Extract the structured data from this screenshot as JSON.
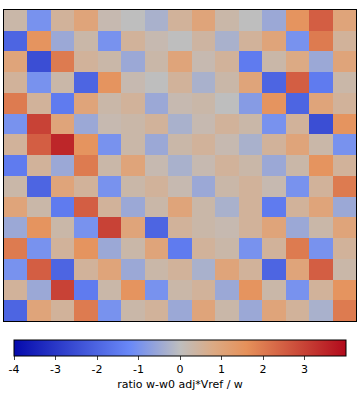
{
  "chart_data": {
    "type": "heatmap",
    "tick_labels": false,
    "z": [
      [
        0.3,
        -1,
        0.5,
        1,
        0.2,
        0,
        -0.3,
        0.5,
        1,
        0.3,
        0,
        -0.5,
        1.5,
        2.5,
        1
      ],
      [
        -2,
        1.5,
        -0.5,
        0.3,
        -1,
        0.5,
        0.2,
        0,
        0.4,
        -0.3,
        0.5,
        1,
        -1,
        2,
        0.5
      ],
      [
        1,
        -2.5,
        2,
        0.5,
        0.3,
        -0.5,
        0.3,
        1,
        0.2,
        0.5,
        -1.5,
        0.3,
        0.8,
        -0.5,
        1
      ],
      [
        0.5,
        -1,
        0.3,
        -2,
        1.5,
        0.2,
        0,
        0.5,
        -0.3,
        0.3,
        1,
        -2,
        2.5,
        -1.5,
        0.3
      ],
      [
        2,
        0.5,
        -1.5,
        1,
        0.3,
        0.5,
        -0.5,
        0.2,
        0.3,
        0,
        -0.8,
        1.5,
        -2,
        1,
        0.5
      ],
      [
        -1,
        3,
        1,
        -0.5,
        0.2,
        0.3,
        0.5,
        -0.3,
        0.2,
        0.5,
        0.3,
        -1,
        0.5,
        -2.5,
        1.5
      ],
      [
        0.5,
        2.5,
        3.5,
        1.5,
        -1,
        0.3,
        -0.5,
        0.3,
        0.5,
        0.2,
        -0.3,
        0.5,
        1,
        0.3,
        -1
      ],
      [
        -1.5,
        0.5,
        -0.5,
        2,
        0.3,
        1,
        0.2,
        -0.3,
        0.2,
        0.5,
        0.3,
        -0.5,
        0.3,
        1.5,
        0.5
      ],
      [
        0.3,
        -2,
        1,
        0.5,
        -1,
        0.3,
        0.5,
        0.2,
        -0.5,
        0.3,
        0.5,
        0.2,
        -1,
        0.5,
        2
      ],
      [
        1,
        0.3,
        -1.5,
        2.5,
        0.5,
        -0.5,
        0.3,
        1,
        0.3,
        -0.3,
        0.5,
        -1.5,
        0.5,
        1,
        -0.5
      ],
      [
        -0.5,
        1.5,
        0.3,
        -1,
        3,
        1,
        -2,
        0.5,
        0.3,
        0.2,
        0.5,
        1,
        -0.5,
        0.3,
        1
      ],
      [
        2,
        -1,
        0.5,
        1.5,
        -0.5,
        0.3,
        1,
        -1.5,
        0.5,
        0.3,
        -1,
        0.5,
        2,
        -1,
        0.5
      ],
      [
        -1,
        2.5,
        -2,
        0.5,
        1,
        -0.5,
        0.3,
        0.5,
        -0.3,
        1,
        0.5,
        -2,
        1,
        2.5,
        0.3
      ],
      [
        0.5,
        -0.5,
        3,
        -1.5,
        0.3,
        1.5,
        -1,
        0.3,
        0.5,
        -0.5,
        1.5,
        0.3,
        -1,
        0.5,
        1.5
      ],
      [
        -2,
        1,
        0.5,
        2,
        -1,
        0.3,
        0.5,
        -0.5,
        1,
        0.3,
        -0.5,
        1,
        0.5,
        -0.3,
        2
      ]
    ],
    "colorbar": {
      "label": "ratio w-w0 adj*Vref / w",
      "range": [
        -4,
        4
      ],
      "ticks": [
        -4,
        -3,
        -2,
        -1,
        0,
        1,
        2,
        3
      ]
    }
  }
}
